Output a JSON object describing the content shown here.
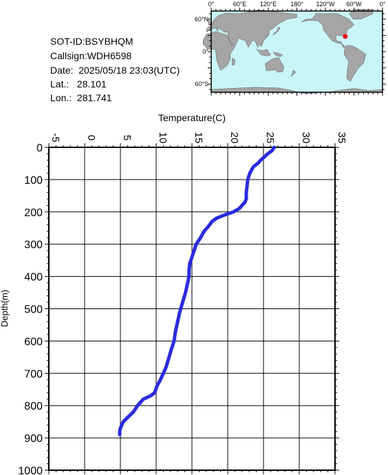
{
  "header": {
    "sot_id": "SOT-ID:BSYBHQM",
    "callsign": "Callsign:WDH6598",
    "date": "Date:  2025/05/18 23:03(UTC)",
    "lat": "Lat.:   28.101",
    "lon": "Lon.:  281.741"
  },
  "map": {
    "lon_labels": [
      "0°",
      "60°E",
      "120°E",
      "180°",
      "120°W",
      "60°W",
      "0°"
    ],
    "lat_labels": [
      "60°N",
      "0°",
      "60°S"
    ],
    "ocean_color": "#c9f4f8",
    "land_color": "#a5a5a5",
    "marker_color": "#ff0000",
    "marker_lat": 28.101,
    "marker_lon": 281.741
  },
  "chart_data": {
    "type": "line",
    "xlabel": "Temperature(C)",
    "ylabel": "Depth(m)",
    "xlim": [
      -5,
      35
    ],
    "ylim": [
      0,
      1000
    ],
    "y_inverted": true,
    "x_axis_position": "top",
    "x_ticks": [
      -5,
      0,
      5,
      10,
      15,
      20,
      25,
      30,
      35
    ],
    "y_ticks": [
      0,
      100,
      200,
      300,
      400,
      500,
      600,
      700,
      800,
      900,
      1000
    ],
    "grid": true,
    "line_color": "#2b2be0",
    "series": [
      {
        "x": [
          26.5,
          26.2,
          25.6,
          25.1,
          24.6,
          24.2,
          23.6,
          23.1,
          22.8,
          22.7,
          22.6,
          22.6,
          22.4,
          22.0,
          21.6,
          20.8,
          19.5,
          18.4,
          17.8,
          17.3,
          16.7,
          16.2,
          15.6,
          15.3,
          15.0,
          14.7,
          14.6,
          14.6,
          14.4,
          14.1,
          13.7,
          13.3,
          13.0,
          12.7,
          12.5,
          12.2,
          11.8,
          11.4,
          11.0,
          10.6,
          10.1,
          9.8,
          9.2,
          8.2,
          7.4,
          6.8,
          6.1,
          5.4,
          5.0,
          4.9,
          4.9
        ],
        "y": [
          0,
          10,
          20,
          30,
          40,
          50,
          60,
          80,
          100,
          120,
          140,
          160,
          170,
          180,
          190,
          200,
          210,
          220,
          230,
          245,
          260,
          280,
          300,
          320,
          340,
          360,
          380,
          400,
          420,
          450,
          480,
          510,
          540,
          570,
          600,
          620,
          650,
          680,
          700,
          720,
          740,
          760,
          770,
          780,
          800,
          820,
          835,
          850,
          870,
          880,
          890
        ]
      }
    ]
  }
}
